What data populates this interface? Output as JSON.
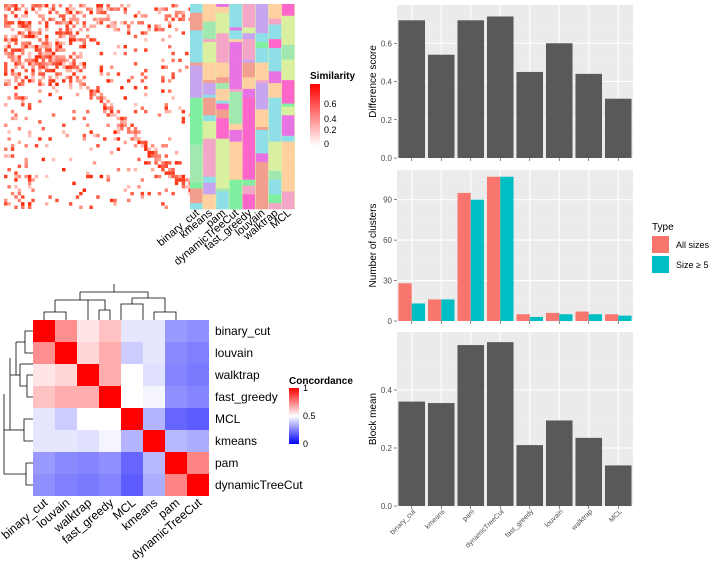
{
  "methods_order": [
    "binary_cut",
    "kmeans",
    "pam",
    "dynamicTreeCut",
    "fast_greedy",
    "louvain",
    "walktrap",
    "MCL"
  ],
  "similarity_legend": {
    "title": "Similarity",
    "ticks": [
      "0.6",
      "0.4",
      "0.2",
      "0"
    ],
    "colors": [
      "#ffffff",
      "#ff0000"
    ]
  },
  "concordance_legend": {
    "title": "Concordance",
    "ticks": [
      "1",
      "0.5",
      "0"
    ],
    "colors": [
      "#0000ff",
      "#ffffff",
      "#ff0000"
    ]
  },
  "type_legend": {
    "title": "Type",
    "entries": [
      {
        "name": "All sizes",
        "color": "#F8766D"
      },
      {
        "name": "Size ≥ 5",
        "color": "#00BFC4"
      }
    ]
  },
  "concordance_heatmap": {
    "row_labels": [
      "binary_cut",
      "louvain",
      "walktrap",
      "fast_greedy",
      "MCL",
      "kmeans",
      "pam",
      "dynamicTreeCut"
    ],
    "col_labels": [
      "binary_cut",
      "louvain",
      "walktrap",
      "fast_greedy",
      "MCL",
      "kmeans",
      "pam",
      "dynamicTreeCut"
    ],
    "values": [
      [
        1.0,
        0.72,
        0.55,
        0.62,
        0.45,
        0.45,
        0.3,
        0.28
      ],
      [
        0.72,
        1.0,
        0.58,
        0.66,
        0.4,
        0.45,
        0.27,
        0.25
      ],
      [
        0.55,
        0.58,
        1.0,
        0.66,
        0.5,
        0.44,
        0.26,
        0.24
      ],
      [
        0.62,
        0.66,
        0.66,
        1.0,
        0.5,
        0.48,
        0.28,
        0.26
      ],
      [
        0.45,
        0.4,
        0.5,
        0.5,
        1.0,
        0.35,
        0.2,
        0.18
      ],
      [
        0.45,
        0.45,
        0.44,
        0.48,
        0.35,
        1.0,
        0.36,
        0.34
      ],
      [
        0.3,
        0.27,
        0.26,
        0.28,
        0.2,
        0.36,
        1.0,
        0.74
      ],
      [
        0.28,
        0.25,
        0.24,
        0.26,
        0.18,
        0.34,
        0.74,
        1.0
      ]
    ]
  },
  "chart_data": [
    {
      "type": "bar",
      "title": "",
      "ylabel": "Difference score",
      "xlabel": "",
      "ylim": [
        0,
        0.8
      ],
      "yticks": [
        0.0,
        0.2,
        0.4,
        0.6
      ],
      "ytick_labels": [
        "0.0",
        "0.2",
        "0.4",
        "0.6"
      ],
      "categories": [
        "binary_cut",
        "kmeans",
        "pam",
        "dynamicTreeCut",
        "fast_greedy",
        "louvain",
        "walktrap",
        "MCL"
      ],
      "values": [
        0.72,
        0.54,
        0.72,
        0.74,
        0.45,
        0.6,
        0.44,
        0.31
      ]
    },
    {
      "type": "bar",
      "title": "",
      "ylabel": "Number of clusters",
      "xlabel": "",
      "ylim": [
        0,
        112
      ],
      "yticks": [
        0,
        30,
        60,
        90
      ],
      "ytick_labels": [
        "0",
        "30",
        "60",
        "90"
      ],
      "categories": [
        "binary_cut",
        "kmeans",
        "pam",
        "dynamicTreeCut",
        "fast_greedy",
        "louvain",
        "walktrap",
        "MCL"
      ],
      "series": [
        {
          "name": "All sizes",
          "values": [
            28,
            16,
            95,
            107,
            5,
            6,
            7,
            5
          ]
        },
        {
          "name": "Size ≥ 5",
          "values": [
            13,
            16,
            90,
            107,
            3,
            5,
            5,
            4
          ]
        }
      ]
    },
    {
      "type": "bar",
      "title": "",
      "ylabel": "Block mean",
      "xlabel": "",
      "ylim": [
        0,
        0.6
      ],
      "yticks": [
        0.0,
        0.2,
        0.4
      ],
      "ytick_labels": [
        "0.0",
        "0.2",
        "0.4"
      ],
      "categories": [
        "binary_cut",
        "kmeans",
        "pam",
        "dynamicTreeCut",
        "fast_greedy",
        "louvain",
        "walktrap",
        "MCL"
      ],
      "values": [
        0.36,
        0.355,
        0.555,
        0.565,
        0.21,
        0.295,
        0.235,
        0.14
      ]
    }
  ]
}
